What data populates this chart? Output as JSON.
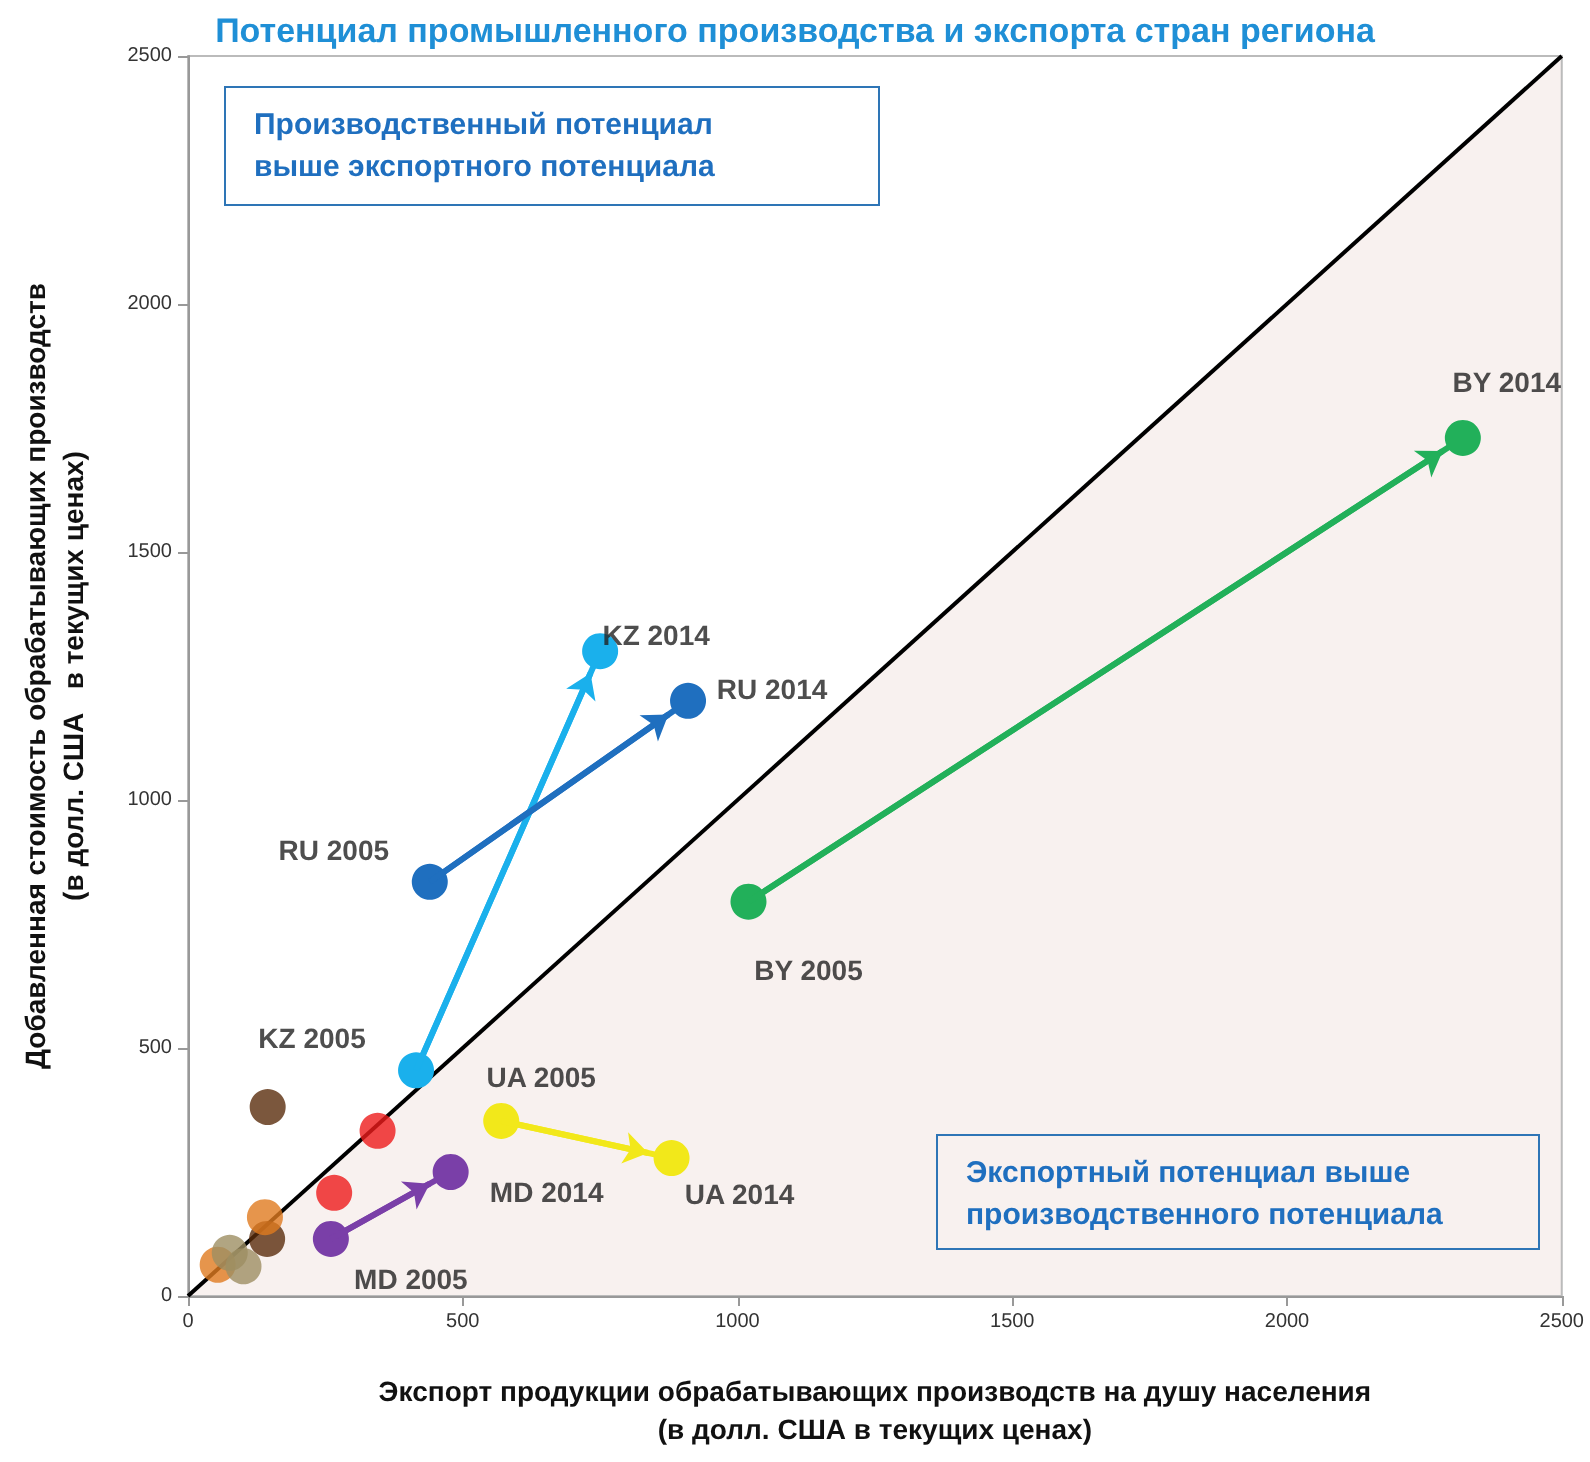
{
  "chart_data": {
    "type": "scatter",
    "title": "Потенциал промышленного производства и экспорта стран региона",
    "xlabel": "Экспорт продукции обрабатывающих производств на душу населения\n(в долл. США в текущих ценах)",
    "ylabel": "Добавленная стоимость обрабатывающих производств\n(в долл. США   в текущих ценах)",
    "xlim": [
      0,
      2500
    ],
    "xticks": [
      0,
      500,
      1000,
      1500,
      2000,
      2500
    ],
    "ylim": [
      0,
      2500
    ],
    "yticks": [
      0,
      500,
      1000,
      1500,
      2000,
      2500
    ],
    "grid": false,
    "marker": "circle",
    "series": [
      {
        "type": "line",
        "color": "#000000",
        "x": [
          0,
          2500
        ],
        "values": [
          0,
          2500
        ],
        "marker": "none"
      },
      {
        "type": "line",
        "color": "#1ab0ec",
        "x": [
          415,
          750
        ],
        "values": [
          455,
          1300
        ]
      },
      {
        "type": "line",
        "color": "#1f6fbf",
        "x": [
          440,
          910
        ],
        "values": [
          835,
          1200
        ]
      },
      {
        "type": "line",
        "color": "#22b05a",
        "x": [
          1020,
          2320
        ],
        "values": [
          795,
          1730
        ]
      },
      {
        "type": "line",
        "color": "#f2e81a",
        "x": [
          570,
          880
        ],
        "values": [
          353,
          278
        ]
      },
      {
        "type": "line",
        "color": "#7a3fa8",
        "x": [
          260,
          478
        ],
        "values": [
          115,
          250
        ]
      },
      {
        "color": "#5a2d0c",
        "x": [
          145,
          144
        ],
        "values": [
          381,
          115
        ]
      },
      {
        "color": "#ee1c1c",
        "x": [
          345,
          266
        ],
        "values": [
          333,
          208
        ]
      },
      {
        "color": "#e07b1f",
        "x": [
          54,
          140
        ],
        "values": [
          63,
          159
        ]
      },
      {
        "color": "#9e8f63",
        "x": [
          76,
          101
        ],
        "values": [
          87,
          60
        ]
      }
    ],
    "annotations": [
      "Производственный потенциал\nвыше экспортного потенциала",
      "Экспортный потенциал выше\nпроизводственного потенциала",
      {
        "text": "KZ 2005",
        "x": 415,
        "y": 455
      },
      {
        "text": "KZ 2014",
        "x": 750,
        "y": 1300
      },
      {
        "text": "RU 2005",
        "x": 440,
        "y": 835
      },
      {
        "text": "RU 2014",
        "x": 910,
        "y": 1200
      },
      {
        "text": "BY 2005",
        "x": 1020,
        "y": 795
      },
      {
        "text": "BY 2014",
        "x": 2320,
        "y": 1730
      },
      {
        "text": "UA 2005",
        "x": 570,
        "y": 353
      },
      {
        "text": "UA 2014",
        "x": 880,
        "y": 278
      },
      {
        "text": "MD 2005",
        "x": 260,
        "y": 115
      },
      {
        "text": "MD 2014",
        "x": 478,
        "y": 250
      }
    ]
  }
}
